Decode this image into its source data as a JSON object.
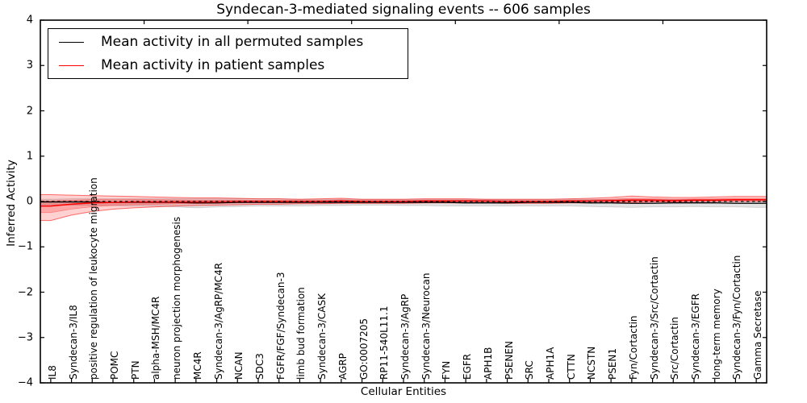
{
  "title": "Syndecan-3-mediated signaling events -- 606 samples",
  "axes": {
    "y_label": "Inferred Activity",
    "x_label": "Cellular Entities",
    "y_tick_labels": [
      "4",
      "3",
      "2",
      "1",
      "0",
      "−1",
      "−2",
      "−3",
      "−4"
    ],
    "y_tick_values": [
      4,
      3,
      2,
      1,
      0,
      -1,
      -2,
      -3,
      -4
    ]
  },
  "legend": {
    "items": [
      {
        "label": "Mean activity in all permuted samples",
        "color": "#000000"
      },
      {
        "label": "Mean activity in patient samples",
        "color": "#ff0000"
      }
    ]
  },
  "chart_data": {
    "type": "line",
    "title": "Syndecan-3-mediated signaling events -- 606 samples",
    "xlabel": "Cellular Entities",
    "ylabel": "Inferred Activity",
    "ylim": [
      -4,
      4
    ],
    "grid": false,
    "legend_position": "upper left",
    "zero_line": {
      "y": 0,
      "style": "dashed",
      "color": "#000000"
    },
    "top_tick_positions": [
      5,
      10,
      15,
      20,
      25,
      30
    ],
    "categories": [
      "IL8",
      "Syndecan-3/IL8",
      "positive regulation of leukocyte migration",
      "POMC",
      "PTN",
      "alpha-MSH/MC4R",
      "neuron projection morphogenesis",
      "MC4R",
      "Syndecan-3/AgRP/MC4R",
      "NCAN",
      "SDC3",
      "FGFR/FGF/Syndecan-3",
      "limb bud formation",
      "Syndecan-3/CASK",
      "AGRP",
      "GO:0007205",
      "RP11-540L11.1",
      "Syndecan-3/AgRP",
      "Syndecan-3/Neurocan",
      "FYN",
      "EGFR",
      "APH1B",
      "PSENEN",
      "SRC",
      "APH1A",
      "CTTN",
      "NCSTN",
      "PSEN1",
      "Fyn/Cortactin",
      "Syndecan-3/Src/Cortactin",
      "Src/Cortactin",
      "Syndecan-3/EGFR",
      "long-term memory",
      "Syndecan-3/Fyn/Cortactin",
      "Gamma Secretase"
    ],
    "series": [
      {
        "name": "Mean activity in all permuted samples",
        "color": "#000000",
        "band_fill": "rgba(0,0,0,0.11)",
        "band_edge": "rgba(0,0,0,0.16)",
        "values": [
          -0.01,
          -0.01,
          -0.01,
          -0.02,
          -0.02,
          -0.02,
          -0.02,
          -0.03,
          -0.03,
          -0.02,
          -0.02,
          -0.02,
          -0.02,
          -0.02,
          -0.02,
          -0.02,
          -0.02,
          -0.02,
          -0.02,
          -0.02,
          -0.03,
          -0.03,
          -0.03,
          -0.02,
          -0.02,
          -0.02,
          -0.03,
          -0.03,
          -0.04,
          -0.04,
          -0.03,
          -0.03,
          -0.03,
          -0.04,
          -0.04
        ],
        "band_hi": [
          0.05,
          0.06,
          0.06,
          0.06,
          0.06,
          0.06,
          0.06,
          0.06,
          0.06,
          0.06,
          0.06,
          0.06,
          0.05,
          0.05,
          0.05,
          0.05,
          0.05,
          0.05,
          0.05,
          0.05,
          0.05,
          0.05,
          0.05,
          0.05,
          0.05,
          0.05,
          0.05,
          0.05,
          0.05,
          0.05,
          0.05,
          0.05,
          0.05,
          0.05,
          0.05
        ],
        "band_lo": [
          -0.07,
          -0.08,
          -0.08,
          -0.09,
          -0.1,
          -0.1,
          -0.12,
          -0.14,
          -0.12,
          -0.11,
          -0.1,
          -0.1,
          -0.1,
          -0.09,
          -0.09,
          -0.08,
          -0.08,
          -0.09,
          -0.09,
          -0.1,
          -0.1,
          -0.1,
          -0.1,
          -0.1,
          -0.1,
          -0.1,
          -0.11,
          -0.12,
          -0.13,
          -0.12,
          -0.12,
          -0.11,
          -0.12,
          -0.12,
          -0.13
        ]
      },
      {
        "name": "Mean activity in patient samples",
        "color": "#ff0000",
        "band_fill": "rgba(255,0,0,0.18)",
        "band_edge": "rgba(255,0,0,0.55)",
        "values": [
          -0.1,
          -0.06,
          -0.03,
          -0.02,
          -0.01,
          -0.01,
          -0.01,
          -0.01,
          -0.01,
          0.0,
          0.0,
          0.0,
          0.0,
          0.0,
          0.01,
          0.0,
          0.0,
          0.0,
          0.01,
          0.01,
          0.01,
          0.01,
          0.0,
          0.0,
          0.0,
          0.01,
          0.01,
          0.02,
          0.03,
          0.03,
          0.02,
          0.03,
          0.03,
          0.04,
          0.04
        ],
        "band_hi": [
          0.15,
          0.14,
          0.13,
          0.12,
          0.11,
          0.1,
          0.09,
          0.08,
          0.08,
          0.07,
          0.06,
          0.06,
          0.05,
          0.06,
          0.07,
          0.05,
          0.05,
          0.05,
          0.06,
          0.06,
          0.06,
          0.05,
          0.05,
          0.05,
          0.05,
          0.06,
          0.07,
          0.09,
          0.12,
          0.1,
          0.09,
          0.09,
          0.1,
          0.11,
          0.11
        ],
        "band_lo": [
          -0.42,
          -0.3,
          -0.22,
          -0.17,
          -0.14,
          -0.12,
          -0.1,
          -0.09,
          -0.08,
          -0.07,
          -0.06,
          -0.06,
          -0.05,
          -0.05,
          -0.04,
          -0.04,
          -0.04,
          -0.04,
          -0.03,
          -0.03,
          -0.03,
          -0.03,
          -0.04,
          -0.04,
          -0.04,
          -0.03,
          -0.03,
          -0.02,
          -0.02,
          -0.01,
          -0.01,
          0.0,
          0.0,
          0.0,
          0.0
        ]
      }
    ]
  }
}
